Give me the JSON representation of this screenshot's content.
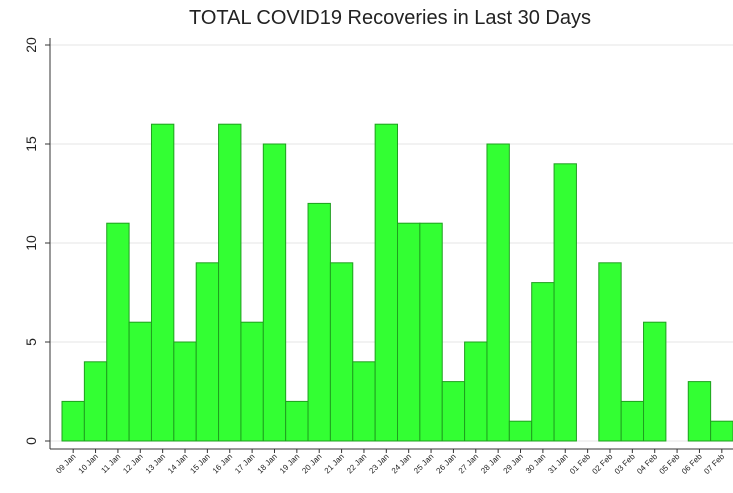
{
  "chart_data": {
    "type": "bar",
    "title": "TOTAL COVID19 Recoveries in Last 30 Days",
    "categories": [
      "09 Jan",
      "10 Jan",
      "11 Jan",
      "12 Jan",
      "13 Jan",
      "14 Jan",
      "15 Jan",
      "16 Jan",
      "17 Jan",
      "18 Jan",
      "19 Jan",
      "20 Jan",
      "21 Jan",
      "22 Jan",
      "23 Jan",
      "24 Jan",
      "25 Jan",
      "26 Jan",
      "27 Jan",
      "28 Jan",
      "29 Jan",
      "30 Jan",
      "31 Jan",
      "01 Feb",
      "02 Feb",
      "03 Feb",
      "04 Feb",
      "05 Feb",
      "06 Feb",
      "07 Feb"
    ],
    "values": [
      2,
      4,
      11,
      6,
      16,
      5,
      9,
      16,
      6,
      15,
      2,
      12,
      9,
      4,
      16,
      11,
      11,
      3,
      5,
      15,
      1,
      8,
      14,
      0,
      9,
      2,
      6,
      0,
      3,
      1
    ],
    "color": "#33ff33",
    "ylim": [
      0,
      20
    ],
    "yticks": [
      0,
      5,
      10,
      15,
      20
    ],
    "grid": true
  }
}
